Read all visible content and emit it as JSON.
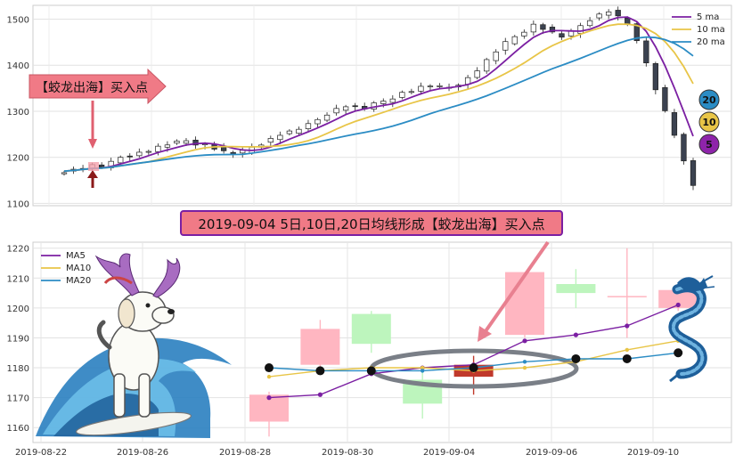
{
  "title_banner": "2019-09-04 5日,10日,20日均线形成【蛟龙出海】买入点",
  "signal_arrow_label": "【蛟龙出海】买入点",
  "colors": {
    "ma5": "#7b1fa2",
    "ma10": "#e8c547",
    "ma20": "#2b8cc4",
    "up": "#ffb6c1",
    "down": "#bdf5bd",
    "banner_bg": "#f07a86",
    "ellipse": "#7a7f87"
  },
  "icons": [
    "surfing-dog-illustration",
    "chinese-dragon-illustration",
    "up-arrow-icon",
    "down-arrow-icon"
  ],
  "chart_data": [
    {
      "type": "candlestick",
      "legend": [
        "5 ma",
        "10 ma",
        "20 ma"
      ],
      "ylim": [
        1095,
        1530
      ],
      "yticks": [
        "1100",
        "1200",
        "1300",
        "1400",
        "1500"
      ],
      "xticks": [],
      "ma_badges": [
        "20",
        "10",
        "5"
      ],
      "close_path": [
        1170,
        1173,
        1178,
        1182,
        1180,
        1188,
        1200,
        1205,
        1210,
        1215,
        1222,
        1228,
        1232,
        1236,
        1230,
        1228,
        1220,
        1212,
        1208,
        1212,
        1222,
        1230,
        1240,
        1250,
        1255,
        1262,
        1270,
        1282,
        1295,
        1305,
        1312,
        1308,
        1306,
        1315,
        1322,
        1330,
        1340,
        1345,
        1352,
        1356,
        1352,
        1350,
        1360,
        1372,
        1390,
        1410,
        1430,
        1448,
        1462,
        1475,
        1488,
        1480,
        1470,
        1462,
        1472,
        1486,
        1500,
        1510,
        1518,
        1505,
        1490,
        1450,
        1405,
        1350,
        1300,
        1250,
        1190,
        1140
      ]
    },
    {
      "type": "candlestick",
      "x_labels": [
        "2019-08-22",
        "2019-08-26",
        "2019-08-28",
        "2019-08-30",
        "2019-09-04",
        "2019-09-06",
        "2019-09-10"
      ],
      "ylim": [
        1155,
        1222
      ],
      "yticks": [
        "1160",
        "1170",
        "1180",
        "1190",
        "1200",
        "1210",
        "1220"
      ],
      "legend": [
        "MA5",
        "MA10",
        "MA20"
      ],
      "candles": [
        {
          "open": 1162,
          "close": 1171,
          "high": 1172,
          "low": 1157,
          "dir": "up"
        },
        {
          "open": 1181,
          "close": 1193,
          "high": 1196,
          "low": 1180,
          "dir": "up"
        },
        {
          "open": 1198,
          "close": 1188,
          "high": 1199,
          "low": 1185,
          "dir": "down"
        },
        {
          "open": 1176,
          "close": 1168,
          "high": 1179,
          "low": 1163,
          "dir": "down"
        },
        {
          "open": 1177,
          "close": 1181,
          "high": 1184,
          "low": 1171,
          "dir": "up"
        },
        {
          "open": 1191,
          "close": 1212,
          "high": 1212,
          "low": 1190,
          "dir": "up"
        },
        {
          "open": 1208,
          "close": 1205,
          "high": 1213,
          "low": 1200,
          "dir": "down"
        },
        {
          "open": 1204,
          "close": 1204,
          "high": 1220,
          "low": 1190,
          "dir": "up"
        },
        {
          "open": 1200,
          "close": 1206,
          "high": 1207,
          "low": 1199,
          "dir": "up"
        }
      ],
      "series": [
        {
          "name": "MA5",
          "values": [
            1170,
            1171,
            1178,
            1180,
            1181,
            1189,
            1191,
            1194,
            1201
          ]
        },
        {
          "name": "MA10",
          "values": [
            1177,
            1179,
            1180,
            1180,
            1179,
            1180,
            1182,
            1186,
            1189
          ]
        },
        {
          "name": "MA20",
          "values": [
            1180,
            1179,
            1179,
            1179,
            1180,
            1182,
            1183,
            1183,
            1185
          ]
        }
      ]
    }
  ]
}
